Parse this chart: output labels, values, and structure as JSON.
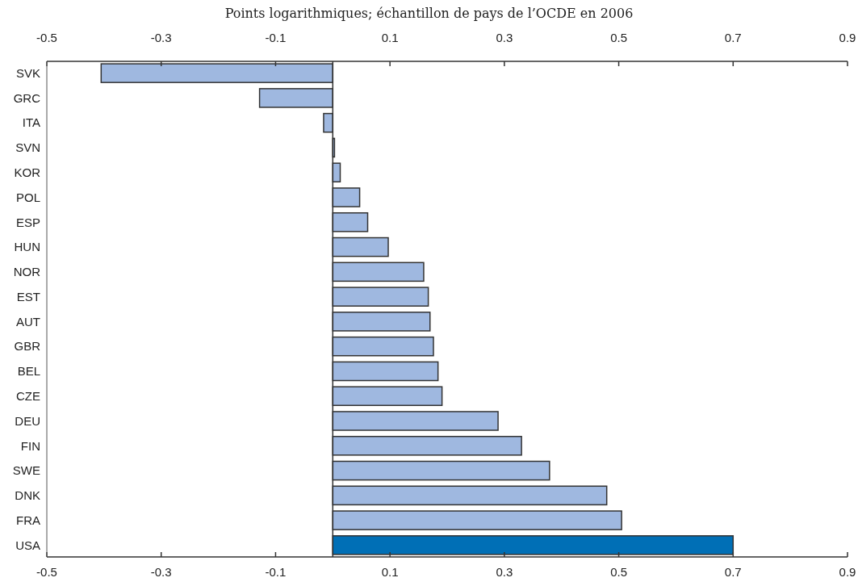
{
  "chart_data": {
    "type": "bar",
    "orientation": "horizontal",
    "subtitle": "Points logarithmiques; échantillon de pays de l’OCDE en 2006",
    "categories": [
      "SVK",
      "GRC",
      "ITA",
      "SVN",
      "KOR",
      "POL",
      "ESP",
      "HUN",
      "NOR",
      "EST",
      "AUT",
      "GBR",
      "BEL",
      "CZE",
      "DEU",
      "FIN",
      "SWE",
      "DNK",
      "FRA",
      "USA"
    ],
    "values": [
      -0.405,
      -0.128,
      -0.016,
      0.003,
      0.013,
      0.047,
      0.061,
      0.097,
      0.159,
      0.167,
      0.17,
      0.176,
      0.184,
      0.191,
      0.289,
      0.33,
      0.379,
      0.479,
      0.505,
      0.7
    ],
    "colors": [
      "#9fb8e0",
      "#9fb8e0",
      "#9fb8e0",
      "#9fb8e0",
      "#9fb8e0",
      "#9fb8e0",
      "#9fb8e0",
      "#9fb8e0",
      "#9fb8e0",
      "#9fb8e0",
      "#9fb8e0",
      "#9fb8e0",
      "#9fb8e0",
      "#9fb8e0",
      "#9fb8e0",
      "#9fb8e0",
      "#9fb8e0",
      "#9fb8e0",
      "#9fb8e0",
      "#006fb6"
    ],
    "xlim": [
      -0.5,
      0.9
    ],
    "xticks": [
      -0.5,
      -0.3,
      -0.1,
      0.1,
      0.3,
      0.5,
      0.7,
      0.9
    ],
    "x2lim": [
      -0.5,
      0.9
    ],
    "x2ticks": [
      -0.5,
      -0.3,
      -0.1,
      0.1,
      0.3,
      0.5,
      0.7,
      0.9
    ],
    "grid": false
  }
}
